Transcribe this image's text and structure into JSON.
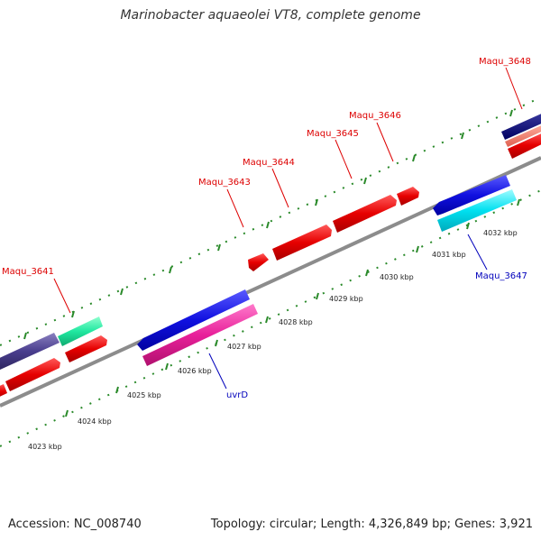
{
  "title": "Marinobacter aquaeolei VT8, complete genome",
  "footer": {
    "accession": "Accession: NC_008740",
    "summary": "Topology: circular; Length: 4,326,849 bp; Genes: 3,921"
  },
  "colors": {
    "label_red": "#dd0000",
    "label_blue": "#0000bb",
    "tick_green": "#2a8a2a",
    "backbone": "#8c8c8c"
  },
  "ticks": [
    "4023 kbp",
    "4024 kbp",
    "4025 kbp",
    "4026 kbp",
    "4027 kbp",
    "4028 kbp",
    "4029 kbp",
    "4030 kbp",
    "4031 kbp",
    "4032 kbp"
  ],
  "genes": [
    {
      "label": "Maqu_3641"
    },
    {
      "label": "Maqu_3643"
    },
    {
      "label": "Maqu_3644"
    },
    {
      "label": "Maqu_3645"
    },
    {
      "label": "Maqu_3646"
    },
    {
      "label": "Maqu_3648"
    },
    {
      "label": "uvrD"
    },
    {
      "label": "Maqu_3647"
    }
  ]
}
